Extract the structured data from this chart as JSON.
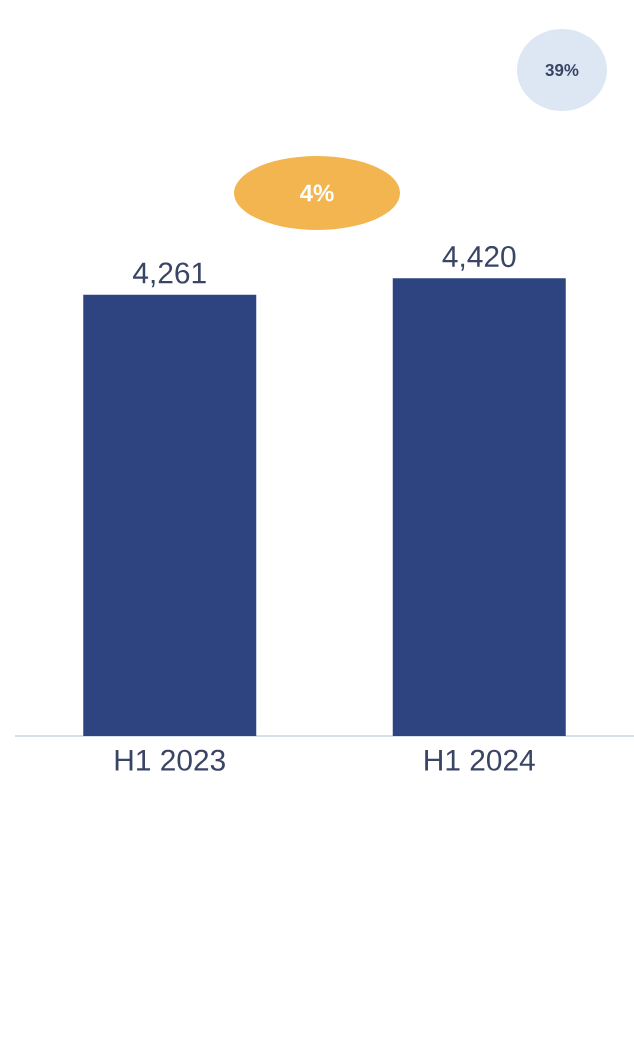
{
  "chart_data": {
    "type": "bar",
    "categories": [
      "H1 2023",
      "H1 2024"
    ],
    "values": [
      4261,
      4420
    ],
    "value_labels": [
      "4,261",
      "4,420"
    ],
    "color": "#2e4480",
    "annotations": [
      "4%",
      "39%"
    ]
  }
}
